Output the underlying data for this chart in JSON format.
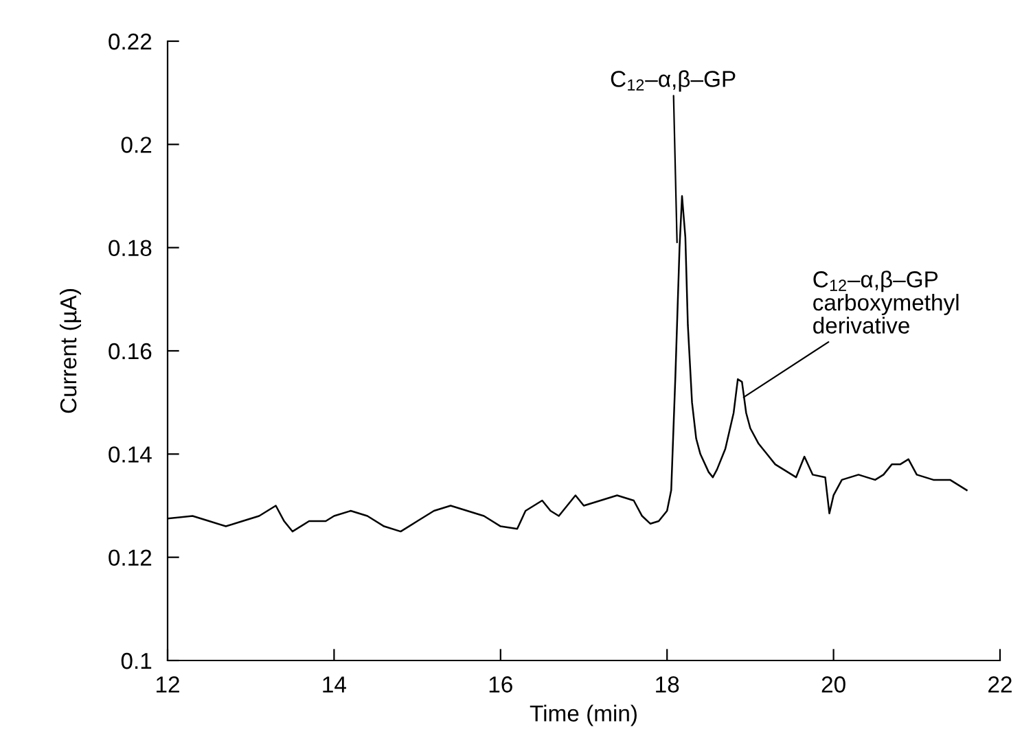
{
  "chart_data": {
    "type": "line",
    "xlabel": "Time (min)",
    "ylabel": "Current (µA)",
    "xlim": [
      12,
      22
    ],
    "xticks": [
      12,
      14,
      16,
      18,
      20,
      22
    ],
    "ylim": [
      0.1,
      0.22
    ],
    "yticks": [
      0.1,
      0.12,
      0.14,
      0.16,
      0.18,
      0.2,
      0.22
    ],
    "grid": false,
    "series": [
      {
        "color": "#000000",
        "x": [
          12.0,
          12.3,
          12.5,
          12.7,
          12.9,
          13.1,
          13.3,
          13.4,
          13.5,
          13.7,
          13.9,
          14.0,
          14.2,
          14.4,
          14.6,
          14.8,
          15.0,
          15.2,
          15.4,
          15.6,
          15.8,
          16.0,
          16.2,
          16.3,
          16.5,
          16.6,
          16.7,
          16.9,
          17.0,
          17.2,
          17.4,
          17.6,
          17.7,
          17.8,
          17.9,
          18.0,
          18.05,
          18.1,
          18.15,
          18.18,
          18.22,
          18.25,
          18.3,
          18.35,
          18.4,
          18.5,
          18.55,
          18.6,
          18.7,
          18.8,
          18.85,
          18.9,
          18.95,
          19.0,
          19.1,
          19.2,
          19.3,
          19.4,
          19.5,
          19.55,
          19.65,
          19.75,
          19.9,
          19.95,
          20.0,
          20.1,
          20.3,
          20.5,
          20.6,
          20.7,
          20.8,
          20.9,
          21.0,
          21.2,
          21.4,
          21.6
        ],
        "values": [
          0.1275,
          0.128,
          0.127,
          0.126,
          0.127,
          0.128,
          0.13,
          0.127,
          0.125,
          0.127,
          0.127,
          0.128,
          0.129,
          0.128,
          0.126,
          0.125,
          0.127,
          0.129,
          0.13,
          0.129,
          0.128,
          0.126,
          0.1255,
          0.129,
          0.131,
          0.129,
          0.128,
          0.132,
          0.13,
          0.131,
          0.132,
          0.131,
          0.128,
          0.1265,
          0.127,
          0.129,
          0.133,
          0.155,
          0.18,
          0.19,
          0.182,
          0.165,
          0.15,
          0.143,
          0.14,
          0.1365,
          0.1355,
          0.137,
          0.141,
          0.148,
          0.1545,
          0.154,
          0.148,
          0.145,
          0.142,
          0.14,
          0.138,
          0.137,
          0.136,
          0.1355,
          0.1395,
          0.136,
          0.1355,
          0.1285,
          0.132,
          0.135,
          0.136,
          0.135,
          0.136,
          0.138,
          0.138,
          0.139,
          0.136,
          0.135,
          0.135,
          0.133
        ]
      }
    ],
    "annotations": [
      {
        "text": "C$_{12}$–α,β–GP",
        "x": 18.12,
        "y": 0.181
      },
      {
        "text": "C$_{12}$–α,β–GP\ncarboxymethyl\nderivative",
        "x": 18.92,
        "y": 0.151
      }
    ]
  }
}
